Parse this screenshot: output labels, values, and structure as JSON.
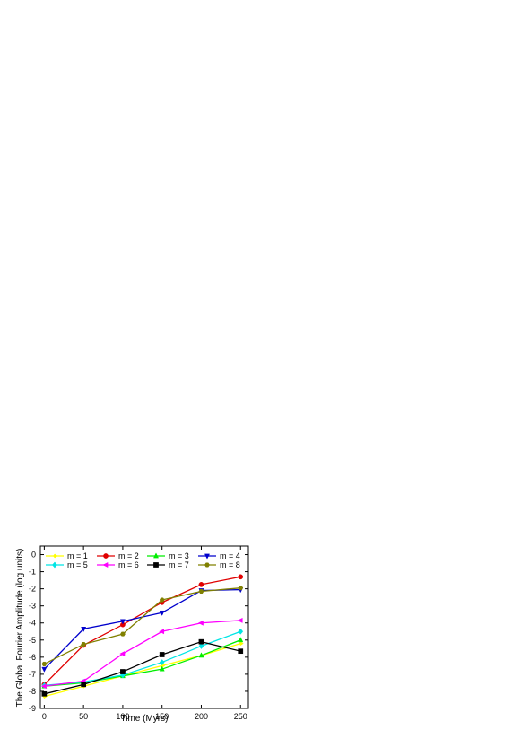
{
  "chart_data": {
    "type": "line",
    "title": "",
    "xlabel": "Time (Myrs)",
    "ylabel": "The Global Fourier Amplitude (log units)",
    "xlim": [
      -5,
      260
    ],
    "ylim": [
      -9,
      0.5
    ],
    "xticks": [
      0,
      50,
      100,
      150,
      200,
      250
    ],
    "yticks": [
      0,
      -1,
      -2,
      -3,
      -4,
      -5,
      -6,
      -7,
      -8,
      -9
    ],
    "grid": false,
    "legend_position": "top, inside plot, 4 columns",
    "x": [
      0,
      50,
      100,
      150,
      200,
      250
    ],
    "series": [
      {
        "name": "m = 1",
        "color": "#ffff00",
        "marker": "diamond-right",
        "values": [
          -8.3,
          -7.7,
          -7.1,
          -6.5,
          -5.9,
          -5.2
        ]
      },
      {
        "name": "m = 2",
        "color": "#e00000",
        "marker": "circle",
        "values": [
          -7.6,
          -5.3,
          -4.1,
          -2.8,
          -1.75,
          -1.3
        ]
      },
      {
        "name": "m = 3",
        "color": "#00ee00",
        "marker": "triangle-up",
        "values": [
          -7.7,
          -7.5,
          -7.1,
          -6.7,
          -5.9,
          -5.0
        ]
      },
      {
        "name": "m = 4",
        "color": "#0000cc",
        "marker": "triangle-down",
        "values": [
          -6.7,
          -4.35,
          -3.9,
          -3.4,
          -2.1,
          -2.05
        ]
      },
      {
        "name": "m = 5",
        "color": "#00e5e5",
        "marker": "diamond",
        "values": [
          -7.65,
          -7.45,
          -7.05,
          -6.3,
          -5.35,
          -4.5
        ]
      },
      {
        "name": "m = 6",
        "color": "#ff00ff",
        "marker": "triangle-left",
        "values": [
          -7.7,
          -7.4,
          -5.8,
          -4.5,
          -4.0,
          -3.85
        ]
      },
      {
        "name": "m = 7",
        "color": "#000000",
        "marker": "square",
        "values": [
          -8.15,
          -7.6,
          -6.85,
          -5.85,
          -5.1,
          -5.65
        ]
      },
      {
        "name": "m = 8",
        "color": "#808000",
        "marker": "hexagon",
        "values": [
          -6.4,
          -5.25,
          -4.65,
          -2.65,
          -2.15,
          -1.95
        ]
      }
    ]
  }
}
